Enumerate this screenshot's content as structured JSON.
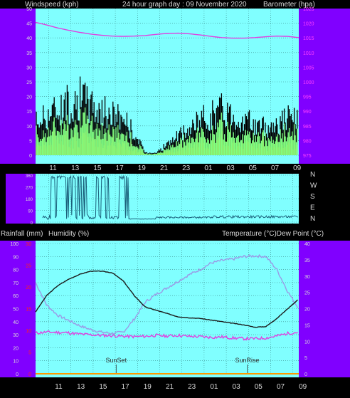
{
  "header": {
    "left": "Windspeed (kph)",
    "center": "24 hour graph day : 09 November 2020",
    "right": "Barometer (hpa)"
  },
  "mid_header": {
    "left1": "Rainfall (mm)",
    "left2": "Humidity (%)",
    "right": "Temperature (°C)Dew Point (°C)"
  },
  "colors": {
    "panel_bg": "#80ffff",
    "side_bar": "#8000ff",
    "wind_gust": "#000000",
    "wind_avg": "#80ff80",
    "wind_low": "#ff9900",
    "barometer": "#e040e0",
    "direction": "#1a5f7a",
    "temperature": "#1a1a1a",
    "humidity": "#9a9ae6",
    "dew_point": "#e040e0",
    "rain_axis": "#ff2020"
  },
  "chart_data": [
    {
      "type": "line",
      "name": "wind-barometer",
      "x_ticks": [
        "11",
        "13",
        "15",
        "17",
        "19",
        "21",
        "23",
        "01",
        "03",
        "05",
        "07",
        "09"
      ],
      "y_left_ticks": [
        "0",
        "5",
        "10",
        "15",
        "20",
        "25",
        "30",
        "35",
        "40",
        "45",
        "50"
      ],
      "y_right_ticks": [
        "975",
        "980",
        "985",
        "990",
        "995",
        "1000",
        "1005",
        "1010",
        "1015",
        "1020",
        "1025"
      ],
      "ylim_left": [
        0,
        50
      ],
      "ylim_right": [
        975,
        1025
      ],
      "xlim_hours": [
        0,
        24
      ],
      "barometer": {
        "x": [
          0,
          1,
          2,
          3,
          4,
          5,
          6,
          7,
          8,
          9,
          10,
          11,
          12,
          13,
          14,
          15,
          16,
          17,
          18,
          19,
          20,
          21,
          22,
          23,
          24
        ],
        "y": [
          1020.3,
          1019.4,
          1018.4,
          1017.6,
          1016.9,
          1016.3,
          1015.9,
          1015.6,
          1015.5,
          1015.6,
          1015.8,
          1016.2,
          1016.5,
          1016.6,
          1016.4,
          1016.0,
          1015.5,
          1015.1,
          1014.9,
          1014.9,
          1015.1,
          1015.4,
          1015.6,
          1015.5,
          1015.1
        ]
      },
      "gust_profile": {
        "x": [
          0,
          1,
          2,
          3,
          4,
          5,
          6,
          7,
          8,
          9,
          10,
          11,
          12,
          13,
          14,
          15,
          16,
          17,
          18,
          19,
          20,
          21,
          22,
          23,
          24
        ],
        "y": [
          12,
          15,
          17,
          19,
          21,
          19,
          16,
          15,
          14,
          8,
          1,
          1,
          4,
          7,
          9,
          13,
          15,
          17,
          15,
          13,
          11,
          10,
          12,
          14,
          13
        ]
      }
    },
    {
      "type": "line",
      "name": "wind-direction",
      "y_right_labels": [
        "N",
        "W",
        "S",
        "E",
        "N"
      ],
      "y_ticks": [
        "0",
        "90",
        "180",
        "270",
        "360"
      ],
      "ylim": [
        0,
        360
      ],
      "xlim_hours": [
        0,
        24
      ]
    },
    {
      "type": "line",
      "name": "temperature-humidity",
      "x_ticks": [
        "11",
        "13",
        "15",
        "17",
        "19",
        "21",
        "23",
        "01",
        "03",
        "05",
        "07",
        "09"
      ],
      "y_humidity_ticks": [
        "0",
        "10",
        "20",
        "30",
        "40",
        "50",
        "60",
        "70",
        "80",
        "90",
        "100"
      ],
      "y_rain_ticks": [
        "0",
        "5",
        "10",
        "15",
        "20",
        "25",
        "30"
      ],
      "y_temp_ticks": [
        "0",
        "5",
        "10",
        "15",
        "20",
        "25",
        "30",
        "35",
        "40"
      ],
      "ylim_humidity": [
        0,
        100
      ],
      "ylim_temp": [
        0,
        40
      ],
      "xlim_hours": [
        0,
        24
      ],
      "annotations": [
        {
          "label": "SunSet",
          "x_hour": 7.35
        },
        {
          "label": "SunRise",
          "x_hour": 19.3
        }
      ],
      "temperature": {
        "x": [
          0,
          1,
          2,
          3,
          4,
          5,
          6,
          7,
          8,
          9,
          10,
          11,
          12,
          13,
          14,
          15,
          16,
          17,
          18,
          19,
          20,
          21,
          22,
          23,
          24
        ],
        "y": [
          19,
          24,
          27,
          29,
          30.5,
          31.5,
          31.5,
          31,
          28.5,
          24,
          20.5,
          19.5,
          18.5,
          17.5,
          17.2,
          17,
          16.5,
          16,
          15.5,
          15,
          14.3,
          14.5,
          17,
          20,
          23
        ]
      },
      "humidity": {
        "x": [
          0,
          1,
          2,
          3,
          4,
          5,
          6,
          7,
          8,
          9,
          10,
          11,
          12,
          13,
          14,
          15,
          16,
          17,
          18,
          19,
          20,
          21,
          22,
          23,
          24
        ],
        "y": [
          70,
          53,
          45,
          41,
          37,
          34,
          32,
          31,
          32,
          42,
          55,
          61,
          66,
          71,
          76,
          80,
          85,
          87,
          88,
          90,
          90.5,
          90,
          80,
          63,
          50
        ]
      },
      "dew_point": {
        "x": [
          0,
          1,
          2,
          3,
          4,
          5,
          6,
          7,
          8,
          9,
          10,
          11,
          12,
          13,
          14,
          15,
          16,
          17,
          18,
          19,
          20,
          21,
          22,
          23,
          24
        ],
        "y": [
          12.5,
          12.8,
          12.7,
          12.6,
          12.2,
          12,
          11.8,
          11.7,
          11.5,
          11.4,
          11.5,
          11.8,
          11.6,
          11.8,
          11.5,
          11.4,
          11.2,
          11.3,
          11,
          10.8,
          10.8,
          11,
          11.6,
          12.4,
          12.8
        ]
      }
    }
  ]
}
